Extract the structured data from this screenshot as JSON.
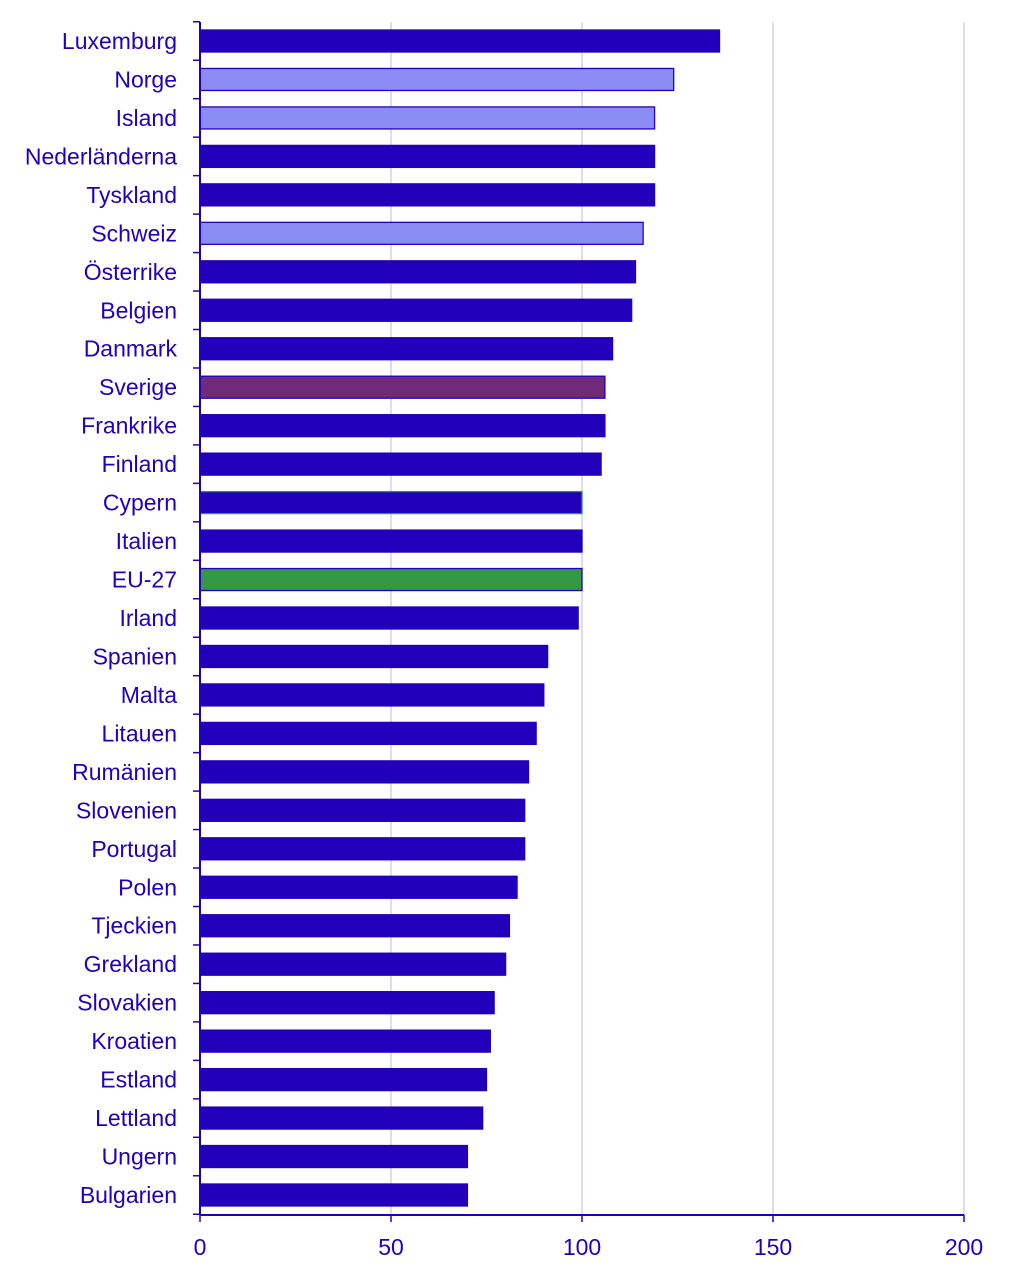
{
  "chart_data": {
    "type": "bar",
    "orientation": "horizontal",
    "title": "",
    "xlabel": "",
    "ylabel": "",
    "xlim": [
      0,
      200
    ],
    "xticks": [
      0,
      50,
      100,
      150,
      200
    ],
    "grid": true,
    "categories": [
      "Luxemburg",
      "Norge",
      "Island",
      "Nederländerna",
      "Tyskland",
      "Schweiz",
      "Österrike",
      "Belgien",
      "Danmark",
      "Sverige",
      "Frankrike",
      "Finland",
      "Cypern",
      "Italien",
      "EU-27",
      "Irland",
      "Spanien",
      "Malta",
      "Litauen",
      "Rumänien",
      "Slovenien",
      "Portugal",
      "Polen",
      "Tjeckien",
      "Grekland",
      "Slovakien",
      "Kroatien",
      "Estland",
      "Lettland",
      "Ungern",
      "Bulgarien"
    ],
    "values": [
      136,
      124,
      119,
      119,
      119,
      116,
      114,
      113,
      108,
      106,
      106,
      105,
      100,
      100,
      100,
      99,
      91,
      90,
      88,
      86,
      85,
      85,
      83,
      81,
      80,
      77,
      76,
      75,
      74,
      70,
      70
    ],
    "bar_styles": [
      "eu",
      "nonEu",
      "nonEu",
      "eu",
      "eu",
      "nonEu",
      "eu",
      "eu",
      "eu",
      "sweden",
      "eu",
      "eu",
      "cyprus",
      "eu",
      "eu27",
      "eu",
      "eu",
      "eu",
      "eu",
      "eu",
      "eu",
      "eu",
      "eu",
      "eu",
      "eu",
      "eu",
      "eu",
      "eu",
      "eu",
      "eu",
      "eu"
    ],
    "colors": {
      "eu": {
        "fill": "#2200BB",
        "stroke": "#2200BB"
      },
      "nonEu": {
        "fill": "#8C8CF5",
        "stroke": "#2200BB"
      },
      "sweden": {
        "fill": "#702A7A",
        "stroke": "#2200BB"
      },
      "cyprus": {
        "fill": "#2200BB",
        "stroke": "#23A040"
      },
      "eu27": {
        "fill": "#339944",
        "stroke": "#2200BB"
      },
      "axis": "#2200BB",
      "grid": "#D2D2EE",
      "text": "#1F00BD"
    }
  }
}
